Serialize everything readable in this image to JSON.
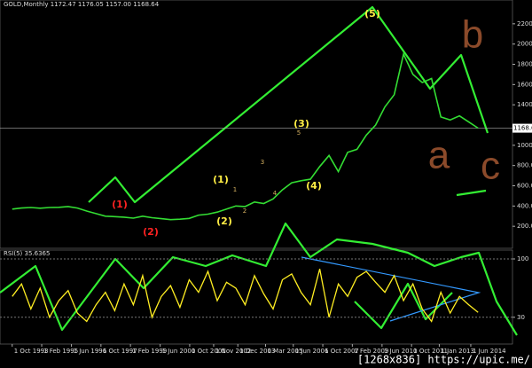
{
  "chart_data": [
    {
      "type": "line",
      "title": "GOLD,Monthly  1172.47 1176.05 1157.00 1168.64",
      "color": "#33dd33",
      "x": [
        1993.75,
        1994.17,
        1994.59,
        1995.01,
        1995.43,
        1995.85,
        1996.27,
        1996.69,
        1997.11,
        1997.53,
        1997.95,
        1998.37,
        1998.79,
        1999.21,
        1999.63,
        2000.05,
        2000.47,
        2000.89,
        2001.31,
        2001.73,
        2002.15,
        2002.57,
        2002.99,
        2003.41,
        2003.83,
        2004.25,
        2004.67,
        2005.09,
        2005.51,
        2005.93,
        2006.35,
        2006.77,
        2007.19,
        2007.61,
        2008.03,
        2008.45,
        2008.87,
        2009.29,
        2009.71,
        2010.13,
        2010.55,
        2010.97,
        2011.39,
        2011.81,
        2012.23,
        2012.65,
        2013.07,
        2013.49,
        2013.91,
        2014.33,
        2014.75
      ],
      "series": [
        {
          "name": "GOLD",
          "color": "#33dd33",
          "values": [
            370,
            380,
            385,
            378,
            385,
            387,
            395,
            380,
            350,
            325,
            300,
            295,
            290,
            280,
            300,
            285,
            275,
            265,
            270,
            278,
            310,
            320,
            340,
            370,
            400,
            395,
            440,
            425,
            470,
            560,
            630,
            650,
            665,
            790,
            900,
            740,
            930,
            960,
            1100,
            1200,
            1380,
            1500,
            1900,
            1700,
            1620,
            1660,
            1280,
            1250,
            1290,
            1230,
            1169
          ]
        }
      ],
      "current_price": {
        "value": 1168.64,
        "label": "1168.64"
      },
      "xlim": [
        1993.2,
        2016.3
      ],
      "xticks": [
        {
          "value": 1993.75,
          "label": "1 Oct 1993"
        },
        {
          "value": 1995.08,
          "label": "1 Feb 1995"
        },
        {
          "value": 1996.42,
          "label": "1 Jun 1996"
        },
        {
          "value": 1997.75,
          "label": "1 Oct 1997"
        },
        {
          "value": 1999.08,
          "label": "1 Feb 1999"
        },
        {
          "value": 2000.42,
          "label": "1 Jun 2000"
        },
        {
          "value": 2001.75,
          "label": "1 Oct 2001"
        },
        {
          "value": 2002.83,
          "label": "1 Nov 2002"
        },
        {
          "value": 2003.92,
          "label": "1 Dec 2003"
        },
        {
          "value": 2005.17,
          "label": "1 Mar 2005"
        },
        {
          "value": 2006.42,
          "label": "1 Jun 2006"
        },
        {
          "value": 2007.75,
          "label": "1 Oct 2007"
        },
        {
          "value": 2009.08,
          "label": "1 Feb 2009"
        },
        {
          "value": 2010.42,
          "label": "1 Jun 2010"
        },
        {
          "value": 2011.75,
          "label": "1 Oct 2011"
        },
        {
          "value": 2013.0,
          "label": "1 Jan 2013"
        },
        {
          "value": 2014.42,
          "label": "1 Jun 2014"
        }
      ],
      "ylim": [
        0,
        2330
      ],
      "yticks": [
        {
          "value": 200,
          "label": "200.00"
        },
        {
          "value": 400,
          "label": "400.00"
        },
        {
          "value": 600,
          "label": "600.00"
        },
        {
          "value": 800,
          "label": "800.00"
        },
        {
          "value": 1000,
          "label": "1000.00"
        },
        {
          "value": 1400,
          "label": "1400.00"
        },
        {
          "value": 1600,
          "label": "1600.00"
        },
        {
          "value": 1800,
          "label": "1800.00"
        },
        {
          "value": 2000,
          "label": "2000.00"
        },
        {
          "value": 2200,
          "label": "2200.00"
        }
      ],
      "annotations": [
        {
          "text": "(1)",
          "color": "#ff2222"
        },
        {
          "text": "(2)",
          "color": "#ff2222"
        },
        {
          "text": "(1)",
          "color": "#ffee44"
        },
        {
          "text": "(2)",
          "color": "#ffee44"
        },
        {
          "text": "(3)",
          "color": "#ffee44"
        },
        {
          "text": "(4)",
          "color": "#ffee44"
        },
        {
          "text": "(5)",
          "color": "#ffee44"
        },
        {
          "text": "1",
          "color": "#d4b060"
        },
        {
          "text": "2",
          "color": "#d4b060"
        },
        {
          "text": "3",
          "color": "#d4b060"
        },
        {
          "text": "4",
          "color": "#d4b060"
        },
        {
          "text": "5",
          "color": "#d4b060"
        },
        {
          "text": "b",
          "color": "#8b4a2a"
        },
        {
          "text": "a",
          "color": "#8b4a2a"
        },
        {
          "text": "c",
          "color": "#8b4a2a"
        }
      ]
    },
    {
      "type": "line",
      "title": "RSI(5) 35.6365",
      "color": "#ffee22",
      "x": [
        1993.75,
        1994.17,
        1994.59,
        1995.01,
        1995.43,
        1995.85,
        1996.27,
        1996.69,
        1997.11,
        1997.53,
        1997.95,
        1998.37,
        1998.79,
        1999.21,
        1999.63,
        2000.05,
        2000.47,
        2000.89,
        2001.31,
        2001.73,
        2002.15,
        2002.57,
        2002.99,
        2003.41,
        2003.83,
        2004.25,
        2004.67,
        2005.09,
        2005.51,
        2005.93,
        2006.35,
        2006.77,
        2007.19,
        2007.61,
        2008.03,
        2008.45,
        2008.87,
        2009.29,
        2009.71,
        2010.13,
        2010.55,
        2010.97,
        2011.39,
        2011.81,
        2012.23,
        2012.65,
        2013.07,
        2013.49,
        2013.91,
        2014.33,
        2014.75
      ],
      "series": [
        {
          "name": "RSI(5)",
          "color": "#ffee22",
          "values": [
            55,
            70,
            40,
            65,
            30,
            50,
            62,
            35,
            25,
            45,
            60,
            38,
            70,
            45,
            80,
            30,
            55,
            68,
            42,
            75,
            60,
            85,
            50,
            72,
            65,
            45,
            80,
            58,
            40,
            75,
            82,
            60,
            45,
            88,
            30,
            70,
            55,
            78,
            85,
            72,
            60,
            80,
            50,
            70,
            40,
            25,
            60,
            35,
            55,
            45,
            36
          ]
        }
      ],
      "ylim": [
        0,
        100
      ],
      "yticks": [
        30,
        100
      ]
    },
    {
      "watermark": "[1268x836] https://upic.me/"
    }
  ]
}
